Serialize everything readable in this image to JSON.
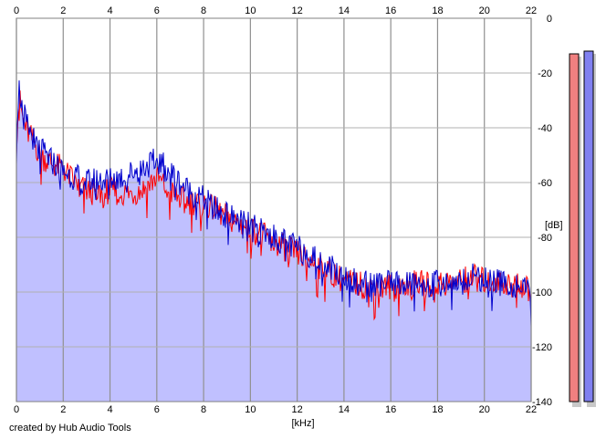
{
  "credit": "created by Hub Audio Tools",
  "colors": {
    "fill": "#c0c0ff",
    "channel_left": "#ff0000",
    "channel_right": "#0000cc",
    "grid": "#a0a0a0"
  },
  "chart_data": {
    "type": "line",
    "xlabel": "[kHz]",
    "ylabel": "[dB]",
    "xlim": [
      0,
      22
    ],
    "ylim": [
      -140,
      0
    ],
    "x_ticks": [
      "0",
      "2",
      "4",
      "6",
      "8",
      "10",
      "12",
      "14",
      "16",
      "18",
      "20",
      "22"
    ],
    "y_ticks": [
      "0",
      "-20",
      "-40",
      "-60",
      "-80",
      "-100",
      "-120",
      "-140"
    ],
    "grid": true,
    "series": [
      {
        "color": "#ff0000",
        "x": [
          0,
          0.1,
          0.3,
          0.5,
          0.8,
          1.0,
          1.5,
          2.0,
          2.5,
          3.0,
          3.5,
          4.0,
          4.5,
          5.0,
          5.5,
          6.0,
          6.5,
          7.0,
          7.5,
          8.0,
          8.5,
          9.0,
          9.5,
          10.0,
          10.5,
          11.0,
          11.5,
          12.0,
          12.5,
          13.0,
          13.5,
          14.0,
          14.5,
          15.0,
          16.0,
          17.0,
          18.0,
          19.0,
          19.5,
          20.0,
          20.5,
          21.0,
          21.5,
          22.0
        ],
        "y": [
          -45,
          -28,
          -38,
          -42,
          -46,
          -50,
          -53,
          -55,
          -60,
          -63,
          -64,
          -63,
          -64,
          -64,
          -62,
          -58,
          -63,
          -66,
          -67,
          -68,
          -70,
          -73,
          -75,
          -77,
          -79,
          -82,
          -84,
          -86,
          -88,
          -91,
          -93,
          -96,
          -97,
          -98,
          -98,
          -97,
          -97,
          -96,
          -94,
          -96,
          -96,
          -97,
          -97,
          -100
        ]
      },
      {
        "color": "#0000cc",
        "x": [
          0,
          0.1,
          0.3,
          0.5,
          0.8,
          1.0,
          1.5,
          2.0,
          2.5,
          3.0,
          3.5,
          4.0,
          4.5,
          5.0,
          5.5,
          6.0,
          6.5,
          7.0,
          7.5,
          8.0,
          8.5,
          9.0,
          9.5,
          10.0,
          10.5,
          11.0,
          11.5,
          12.0,
          12.5,
          13.0,
          13.5,
          14.0,
          14.5,
          15.0,
          16.0,
          17.0,
          18.0,
          19.0,
          19.5,
          20.0,
          20.5,
          21.0,
          21.5,
          22.0
        ],
        "y": [
          -42,
          -25,
          -35,
          -40,
          -45,
          -48,
          -52,
          -56,
          -58,
          -60,
          -59,
          -59,
          -58,
          -56,
          -54,
          -52,
          -55,
          -60,
          -64,
          -66,
          -70,
          -72,
          -74,
          -76,
          -78,
          -80,
          -82,
          -84,
          -86,
          -89,
          -91,
          -94,
          -96,
          -97,
          -97,
          -97,
          -97,
          -96,
          -93,
          -96,
          -96,
          -97,
          -98,
          -101
        ]
      }
    ],
    "level_meters": [
      {
        "color": "#f08080",
        "level_db": -13
      },
      {
        "color": "#8080f0",
        "level_db": -12
      }
    ]
  }
}
